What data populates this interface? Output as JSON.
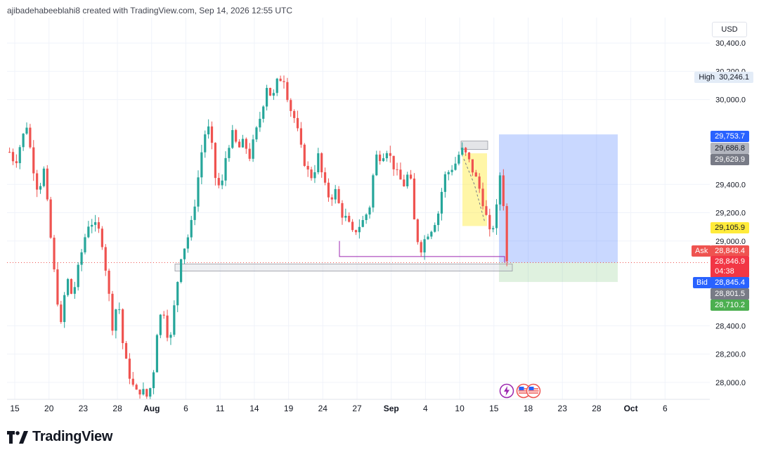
{
  "header": {
    "text": "ajibadehabeeblahi8 created with TradingView.com, Sep 14, 2026 12:55 UTC"
  },
  "brand": {
    "name": "TradingView"
  },
  "currency": "USD",
  "colors": {
    "up": "#26a69a",
    "down": "#ef5350",
    "high_bg": "#e3ecf7",
    "blue": "#2962ff",
    "gray": "#787b86",
    "yellow": "#ffeb3b",
    "green": "#4caf50",
    "ask": "#ef5350",
    "bid": "#2962ff",
    "violet": "#9c27b0"
  },
  "price_labels": {
    "high": {
      "label": "High",
      "value": "30,246.1"
    },
    "target": "29,753.7",
    "level1": "29,686.8",
    "level2": "29,629.9",
    "yellow": "29,105.9",
    "ask": {
      "label": "Ask",
      "value": "28,848.4"
    },
    "last": "28,846.9",
    "countdown": "04:38",
    "bid": {
      "label": "Bid",
      "value": "28,845.4"
    },
    "level3": "28,801.5",
    "stop": "28,710.2"
  },
  "icons": [
    "flash-icon",
    "us-flag-icon",
    "us-flag-icon"
  ],
  "chart_data": {
    "type": "candlestick",
    "y_axis": {
      "range": [
        27880,
        30580
      ],
      "ticks": [
        "30,400.0",
        "30,200.0",
        "30,000.0",
        "29,400.0",
        "29,200.0",
        "29,000.0",
        "28,400.0",
        "28,200.0",
        "28,000.0"
      ]
    },
    "x_axis": {
      "ticks": [
        "15",
        "20",
        "23",
        "28",
        "Aug",
        "6",
        "11",
        "14",
        "19",
        "24",
        "27",
        "Sep",
        "4",
        "10",
        "15",
        "18",
        "23",
        "28",
        "Oct",
        "6"
      ]
    },
    "price_path": [
      [
        0,
        29630
      ],
      [
        1,
        29550
      ],
      [
        2,
        29700
      ],
      [
        3,
        29820
      ],
      [
        4,
        29550
      ],
      [
        5,
        29350
      ],
      [
        6,
        29500
      ],
      [
        7,
        29100
      ],
      [
        8,
        28700
      ],
      [
        9,
        28400
      ],
      [
        10,
        28750
      ],
      [
        11,
        28600
      ],
      [
        12,
        28800
      ],
      [
        13,
        29000
      ],
      [
        14,
        29150
      ],
      [
        15,
        29100
      ],
      [
        16,
        29050
      ],
      [
        17,
        28750
      ],
      [
        18,
        28400
      ],
      [
        19,
        28600
      ],
      [
        20,
        28200
      ],
      [
        21,
        28050
      ],
      [
        22,
        27920
      ],
      [
        23,
        27950
      ],
      [
        24,
        27900
      ],
      [
        25,
        28000
      ],
      [
        26,
        28450
      ],
      [
        27,
        28500
      ],
      [
        28,
        28250
      ],
      [
        29,
        28600
      ],
      [
        30,
        28900
      ],
      [
        31,
        29000
      ],
      [
        32,
        29150
      ],
      [
        33,
        29450
      ],
      [
        34,
        29750
      ],
      [
        35,
        29800
      ],
      [
        36,
        29450
      ],
      [
        37,
        29350
      ],
      [
        38,
        29650
      ],
      [
        39,
        29750
      ],
      [
        40,
        29650
      ],
      [
        41,
        29700
      ],
      [
        42,
        29600
      ],
      [
        43,
        29750
      ],
      [
        44,
        29900
      ],
      [
        45,
        30100
      ],
      [
        46,
        30000
      ],
      [
        47,
        30150
      ],
      [
        48,
        30150
      ],
      [
        49,
        29950
      ],
      [
        50,
        29850
      ],
      [
        51,
        29650
      ],
      [
        52,
        29500
      ],
      [
        53,
        29450
      ],
      [
        54,
        29600
      ],
      [
        55,
        29400
      ],
      [
        56,
        29300
      ],
      [
        57,
        29350
      ],
      [
        58,
        29200
      ],
      [
        59,
        29150
      ],
      [
        60,
        29050
      ],
      [
        61,
        29100
      ],
      [
        62,
        29150
      ],
      [
        63,
        29250
      ],
      [
        64,
        29600
      ],
      [
        65,
        29600
      ],
      [
        66,
        29650
      ],
      [
        67,
        29550
      ],
      [
        68,
        29450
      ],
      [
        69,
        29400
      ],
      [
        70,
        29500
      ],
      [
        71,
        29050
      ],
      [
        72,
        28950
      ],
      [
        73,
        29050
      ],
      [
        74,
        29100
      ],
      [
        75,
        29200
      ],
      [
        76,
        29450
      ],
      [
        77,
        29500
      ],
      [
        78,
        29550
      ],
      [
        79,
        29650
      ],
      [
        80,
        29600
      ],
      [
        81,
        29500
      ],
      [
        82,
        29400
      ],
      [
        83,
        29250
      ],
      [
        84,
        29050
      ],
      [
        85,
        29150
      ],
      [
        86,
        29550
      ],
      [
        87,
        28850
      ]
    ],
    "source": "TradingView"
  }
}
